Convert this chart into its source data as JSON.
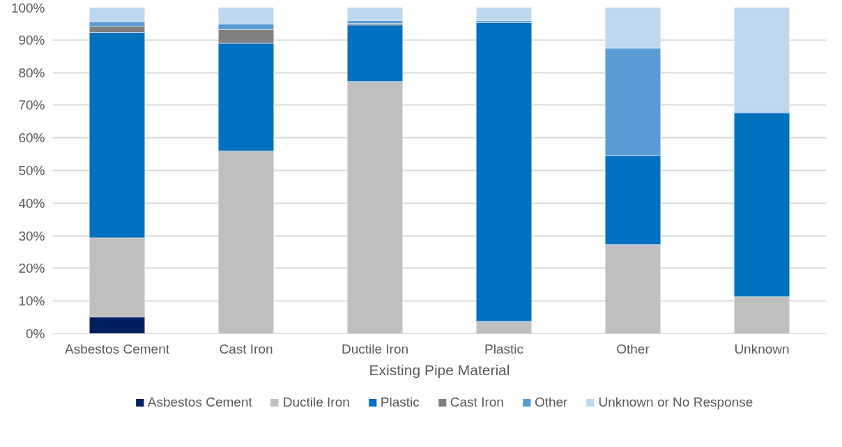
{
  "chart_data": {
    "type": "bar",
    "stacked": true,
    "xlabel": "Existing Pipe Material",
    "categories": [
      "Asbestos Cement",
      "Cast Iron",
      "Ductile Iron",
      "Plastic",
      "Other",
      "Unknown"
    ],
    "series": [
      {
        "name": "Asbestos Cement",
        "color": "#002060",
        "values": [
          5.1,
          0,
          0,
          0,
          0,
          0
        ]
      },
      {
        "name": "Ductile Iron",
        "color": "#bfbfbf",
        "values": [
          24.3,
          56.0,
          77.3,
          3.8,
          27.3,
          11.3
        ]
      },
      {
        "name": "Plastic",
        "color": "#0070c0",
        "values": [
          62.9,
          33.0,
          17.3,
          91.6,
          27.2,
          56.4
        ]
      },
      {
        "name": "Cast Iron",
        "color": "#808080",
        "values": [
          1.9,
          4.2,
          0.5,
          0,
          0,
          0
        ]
      },
      {
        "name": "Other",
        "color": "#5b9bd5",
        "values": [
          1.4,
          1.7,
          0.9,
          0.6,
          33.0,
          0.4
        ]
      },
      {
        "name": "Unknown or No Response",
        "color": "#bdd7ee",
        "values": [
          4.4,
          5.1,
          4.0,
          4.0,
          12.5,
          31.9
        ]
      }
    ],
    "ylim": [
      0,
      100
    ],
    "yticks": [
      {
        "value": 0,
        "label": "0%"
      },
      {
        "value": 10,
        "label": "10%"
      },
      {
        "value": 20,
        "label": "20%"
      },
      {
        "value": 30,
        "label": "30%"
      },
      {
        "value": 40,
        "label": "40%"
      },
      {
        "value": 50,
        "label": "50%"
      },
      {
        "value": 60,
        "label": "60%"
      },
      {
        "value": 70,
        "label": "70%"
      },
      {
        "value": 80,
        "label": "80%"
      },
      {
        "value": 90,
        "label": "90%"
      },
      {
        "value": 100,
        "label": "100%"
      }
    ],
    "grid": "y",
    "legend": "bottom"
  }
}
